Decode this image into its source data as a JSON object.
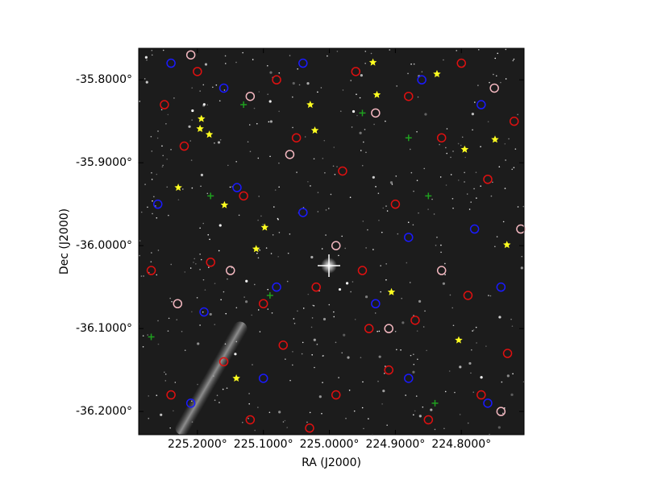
{
  "chart_data": {
    "type": "scatter",
    "xlabel": "RA (J2000)",
    "ylabel": "Dec (J2000)",
    "xlim": [
      225.289,
      224.705
    ],
    "ylim": [
      -36.228,
      -35.762
    ],
    "xticks": [
      {
        "value": 225.2,
        "label": "225.2000°"
      },
      {
        "value": 225.1,
        "label": "225.1000°"
      },
      {
        "value": 225.0,
        "label": "225.0000°"
      },
      {
        "value": 224.9,
        "label": "224.9000°"
      },
      {
        "value": 224.8,
        "label": "224.8000°"
      }
    ],
    "yticks": [
      {
        "value": -35.8,
        "label": "-35.8000°"
      },
      {
        "value": -35.9,
        "label": "-35.9000°"
      },
      {
        "value": -36.0,
        "label": "-36.0000°"
      },
      {
        "value": -36.1,
        "label": "-36.1000°"
      },
      {
        "value": -36.2,
        "label": "-36.2000°"
      }
    ],
    "series": [
      {
        "color": "#e01010",
        "marker": "circle",
        "x": [
          225.25,
          225.22,
          225.13,
          225.05,
          224.98,
          224.9,
          224.83,
          224.76,
          224.72,
          225.27,
          225.18,
          225.1,
          225.02,
          224.95,
          224.87,
          224.79,
          224.73,
          225.24,
          225.16,
          225.07,
          224.99,
          224.91,
          224.85,
          224.77,
          225.2,
          225.08,
          224.96,
          224.88,
          224.8,
          225.12,
          225.03,
          224.94
        ],
        "values": [
          -35.83,
          -35.88,
          -35.94,
          -35.87,
          -35.91,
          -35.95,
          -35.87,
          -35.92,
          -35.85,
          -36.03,
          -36.02,
          -36.07,
          -36.05,
          -36.03,
          -36.09,
          -36.06,
          -36.13,
          -36.18,
          -36.14,
          -36.12,
          -36.18,
          -36.15,
          -36.21,
          -36.18,
          -35.79,
          -35.8,
          -35.79,
          -35.82,
          -35.78,
          -36.21,
          -36.22,
          -36.1
        ]
      },
      {
        "color": "#f4b8c0",
        "marker": "circle",
        "x": [
          225.21,
          225.12,
          224.93,
          224.75,
          225.23,
          224.99,
          224.83,
          224.91,
          225.15,
          224.74,
          225.06,
          224.71
        ],
        "values": [
          -35.77,
          -35.82,
          -35.84,
          -35.81,
          -36.07,
          -36.0,
          -36.03,
          -36.1,
          -36.03,
          -36.2,
          -35.89,
          -35.98
        ]
      },
      {
        "color": "#1a1aff",
        "marker": "circle",
        "x": [
          225.24,
          225.16,
          225.04,
          224.86,
          224.77,
          225.26,
          225.14,
          225.04,
          224.88,
          224.78,
          225.19,
          225.08,
          224.93,
          224.74,
          225.21,
          225.1,
          224.88,
          224.76
        ],
        "values": [
          -35.78,
          -35.81,
          -35.78,
          -35.8,
          -35.83,
          -35.95,
          -35.93,
          -35.96,
          -35.99,
          -35.98,
          -36.08,
          -36.05,
          -36.07,
          -36.05,
          -36.19,
          -36.16,
          -36.16,
          -36.19
        ]
      },
      {
        "color": "#1fa01f",
        "marker": "cross",
        "x": [
          225.13,
          224.95,
          224.88,
          225.18,
          224.85,
          225.09,
          225.27,
          224.84
        ],
        "values": [
          -35.83,
          -35.84,
          -35.87,
          -35.94,
          -35.94,
          -36.06,
          -36.11,
          -36.19
        ]
      },
      {
        "color": "#ffff20",
        "marker": "star",
        "x": [
          224.934,
          224.837,
          224.928,
          225.029,
          225.194,
          225.196,
          225.182,
          225.022,
          224.795,
          224.749,
          225.229,
          225.159,
          225.098,
          225.111,
          224.906,
          224.731,
          224.804,
          225.141
        ],
        "values": [
          -35.779,
          -35.793,
          -35.818,
          -35.83,
          -35.847,
          -35.859,
          -35.866,
          -35.861,
          -35.884,
          -35.872,
          -35.93,
          -35.951,
          -35.978,
          -36.004,
          -36.056,
          -35.999,
          -36.114,
          -36.16
        ]
      }
    ]
  }
}
